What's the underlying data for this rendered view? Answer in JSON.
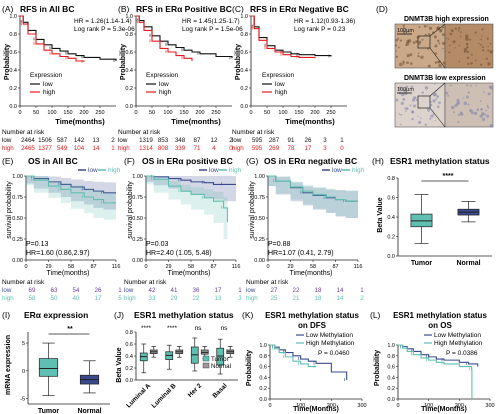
{
  "colors": {
    "red": "#e41a1c",
    "black": "#111111",
    "teal": "#5fbfb0",
    "navy": "#3b4a8c",
    "purple": "#6a3d9a",
    "gray": "#666666"
  },
  "panels": {
    "A": {
      "letter": "(A)",
      "title": "RFS in All BC",
      "hr": "HR = 1.26(1.14-1.4)",
      "logrank": "Log rank P = 5.3e-06",
      "ylabel": "Probability",
      "xlabel": "Time(months)",
      "legend_title": "Expression",
      "legend_low": "low",
      "legend_high": "high",
      "risk_header": "Number at risk",
      "risk_low_label": "low",
      "risk_low": [
        "2464",
        "1506",
        "587",
        "142",
        "13",
        "2"
      ],
      "risk_high_label": "high",
      "risk_high": [
        "2465",
        "1377",
        "549",
        "104",
        "14",
        "1"
      ]
    },
    "B": {
      "letter": "(B)",
      "title": "RFS in ERα Positive BC",
      "hr": "HR = 1.45(1.25-1.7)",
      "logrank": "Log rank P = 1.5e-06",
      "ylabel": "Probability",
      "xlabel": "Time(months)",
      "legend_title": "Expression",
      "legend_low": "low",
      "legend_high": "high",
      "risk_header": "Number at risk",
      "risk_low_label": "low",
      "risk_low": [
        "1319",
        "853",
        "348",
        "87",
        "12",
        "2"
      ],
      "risk_high_label": "high",
      "risk_high": [
        "1314",
        "808",
        "339",
        "71",
        "4",
        "0"
      ]
    },
    "C": {
      "letter": "(C)",
      "title": "RFS in ERα Negative BC",
      "hr": "HR = 1.12(0.93-1.36)",
      "logrank": "Log rank P = 0.23",
      "ylabel": "Probability",
      "xlabel": "Time(months)",
      "legend_title": "Expression",
      "legend_low": "low",
      "legend_high": "high",
      "risk_header": "Number at risk",
      "risk_low_label": "low",
      "risk_low": [
        "595",
        "287",
        "91",
        "26",
        "3",
        "1"
      ],
      "risk_high_label": "high",
      "risk_high": [
        "595",
        "269",
        "78",
        "17",
        "3",
        "0"
      ]
    },
    "D": {
      "letter": "(D)",
      "title_high": "DNMT3B high expression",
      "title_low": "DNMT3B low expression",
      "scale": "100μm"
    },
    "E": {
      "letter": "(E)",
      "title": "OS in All BC",
      "p": "P=0.13",
      "hr": "HR=1.60 (0.86,2.97)",
      "ylabel": "survival probability",
      "xlabel": "Time(months)",
      "legend_low": "low",
      "legend_high": "high",
      "risk_header": "Number at risk",
      "risk_low_label": "low",
      "risk_low": [
        "69",
        "63",
        "54",
        "26",
        "1"
      ],
      "risk_high_label": "high",
      "risk_high": [
        "58",
        "50",
        "40",
        "17",
        "5"
      ]
    },
    "F": {
      "letter": "(F)",
      "title": "OS in ERα positive BC",
      "p": "P=0.03",
      "hr": "HR=2.40 (1.05, 5.48)",
      "ylabel": "survival probability",
      "xlabel": "Time(months)",
      "legend_low": "low",
      "legend_high": "high",
      "risk_header": "Number at risk",
      "risk_low_label": "low",
      "risk_low": [
        "42",
        "41",
        "36",
        "17",
        "1"
      ],
      "risk_high_label": "high",
      "risk_high": [
        "33",
        "29",
        "22",
        "13",
        "3"
      ]
    },
    "G": {
      "letter": "(G)",
      "title": "OS in ERα negative BC",
      "p": "P=0.88",
      "hr": "HR=1.07 (0.41, 2.79)",
      "ylabel": "survival probability",
      "xlabel": "Time(months)",
      "legend_low": "low",
      "legend_high": "high",
      "risk_header": "Number at risk",
      "risk_low_label": "low",
      "risk_low": [
        "27",
        "22",
        "18",
        "14",
        "1"
      ],
      "risk_high_label": "high",
      "risk_high": [
        "25",
        "21",
        "18",
        "14",
        "2"
      ]
    },
    "H": {
      "letter": "(H)",
      "title": "ESR1 methylation status",
      "ylabel": "Beta Value",
      "sig": "****"
    },
    "I": {
      "letter": "(I)",
      "title": "ERα expression",
      "ylabel": "mRNA expression",
      "sig": "**"
    },
    "J": {
      "letter": "(J)",
      "title": "ESR1 methylation status",
      "ylabel": "Beta Value",
      "legend_tumor": "Tumor",
      "legend_normal": "Normal",
      "sig": [
        "****",
        "****",
        "ns",
        "ns"
      ]
    },
    "K": {
      "letter": "(K)",
      "title1": "ESR1 methylation status",
      "title2": "on DFS",
      "ylabel": "Probability",
      "xlabel": "Time(Months)",
      "legend_low": "Low  Methylation",
      "legend_high": "High Methylation",
      "p": "P = 0.0460"
    },
    "L": {
      "letter": "(L)",
      "title1": "ESR1 methylation status",
      "title2": "on OS",
      "ylabel": "Probability",
      "xlabel": "Time(Months)",
      "legend_low": "Low  Methylation",
      "legend_high": "High Methylation",
      "p": "P = 0.0386"
    }
  },
  "chart_data": [
    {
      "panel": "A",
      "type": "line",
      "x_ticks": [
        "0",
        "50",
        "100",
        "150",
        "200",
        "250"
      ],
      "y_ticks": [
        "0.0",
        "0.2",
        "0.4",
        "0.6",
        "0.8",
        "1.0"
      ],
      "xlim": [
        0,
        300
      ],
      "ylim": [
        0,
        1
      ],
      "series": [
        {
          "name": "low",
          "color": "#111111",
          "x": [
            0,
            10,
            25,
            50,
            75,
            100,
            125,
            150,
            175,
            200,
            250,
            300
          ],
          "y": [
            1,
            0.93,
            0.84,
            0.74,
            0.68,
            0.64,
            0.61,
            0.58,
            0.56,
            0.54,
            0.52,
            0.5
          ]
        },
        {
          "name": "high",
          "color": "#e41a1c",
          "x": [
            0,
            10,
            25,
            50,
            75,
            100,
            125,
            150,
            175,
            200
          ],
          "y": [
            1,
            0.91,
            0.8,
            0.69,
            0.62,
            0.58,
            0.55,
            0.53,
            0.5,
            0.49
          ]
        }
      ]
    },
    {
      "panel": "B",
      "type": "line",
      "x_ticks": [
        "0",
        "50",
        "100",
        "150",
        "200",
        "250"
      ],
      "y_ticks": [
        "0.0",
        "0.2",
        "0.4",
        "0.6",
        "0.8",
        "1.0"
      ],
      "xlim": [
        0,
        300
      ],
      "ylim": [
        0,
        1
      ],
      "series": [
        {
          "name": "low",
          "color": "#111111",
          "x": [
            0,
            10,
            25,
            50,
            75,
            100,
            125,
            150,
            175,
            200,
            250,
            300
          ],
          "y": [
            1,
            0.95,
            0.88,
            0.78,
            0.72,
            0.68,
            0.65,
            0.62,
            0.6,
            0.58,
            0.55,
            0.53
          ]
        },
        {
          "name": "high",
          "color": "#e41a1c",
          "x": [
            0,
            10,
            25,
            50,
            75,
            100,
            125,
            150,
            175
          ],
          "y": [
            1,
            0.93,
            0.84,
            0.72,
            0.64,
            0.6,
            0.56,
            0.53,
            0.5
          ]
        }
      ]
    },
    {
      "panel": "C",
      "type": "line",
      "x_ticks": [
        "0",
        "50",
        "100",
        "150",
        "200",
        "250"
      ],
      "y_ticks": [
        "0.0",
        "0.2",
        "0.4",
        "0.6",
        "0.8",
        "1.0"
      ],
      "xlim": [
        0,
        300
      ],
      "ylim": [
        0,
        1
      ],
      "series": [
        {
          "name": "low",
          "color": "#111111",
          "x": [
            0,
            10,
            25,
            50,
            75,
            100,
            125,
            150,
            200,
            250
          ],
          "y": [
            1,
            0.88,
            0.76,
            0.67,
            0.62,
            0.6,
            0.58,
            0.57,
            0.56,
            0.55
          ]
        },
        {
          "name": "high",
          "color": "#e41a1c",
          "x": [
            0,
            10,
            25,
            50,
            75,
            100,
            125,
            150,
            200
          ],
          "y": [
            1,
            0.86,
            0.73,
            0.64,
            0.6,
            0.57,
            0.55,
            0.54,
            0.53
          ]
        }
      ]
    },
    {
      "panel": "E",
      "type": "line",
      "x_ticks": [
        "0",
        "29",
        "58",
        "87",
        "116"
      ],
      "y_ticks": [
        "0.00",
        "0.25",
        "0.50",
        "0.75",
        "1.00"
      ],
      "xlim": [
        0,
        116
      ],
      "ylim": [
        0,
        1
      ],
      "series": [
        {
          "name": "low",
          "color": "#3b4a8c",
          "x": [
            0,
            10,
            29,
            45,
            58,
            75,
            87,
            100,
            116
          ],
          "y": [
            1,
            0.97,
            0.93,
            0.9,
            0.87,
            0.84,
            0.82,
            0.8,
            0.8
          ]
        },
        {
          "name": "high",
          "color": "#5fbfb0",
          "x": [
            0,
            10,
            29,
            45,
            58,
            75,
            87,
            100,
            116
          ],
          "y": [
            1,
            0.95,
            0.88,
            0.84,
            0.8,
            0.75,
            0.72,
            0.68,
            0.68
          ]
        }
      ]
    },
    {
      "panel": "F",
      "type": "line",
      "x_ticks": [
        "0",
        "29",
        "58",
        "87",
        "116"
      ],
      "y_ticks": [
        "0.00",
        "0.25",
        "0.50",
        "0.75",
        "1.00"
      ],
      "xlim": [
        0,
        116
      ],
      "ylim": [
        0,
        1
      ],
      "series": [
        {
          "name": "low",
          "color": "#3b4a8c",
          "x": [
            0,
            10,
            29,
            45,
            58,
            75,
            87,
            100,
            116
          ],
          "y": [
            1,
            0.99,
            0.97,
            0.95,
            0.93,
            0.92,
            0.9,
            0.9,
            0.9
          ]
        },
        {
          "name": "high",
          "color": "#5fbfb0",
          "x": [
            0,
            10,
            29,
            45,
            58,
            75,
            87,
            100,
            105
          ],
          "y": [
            1,
            0.96,
            0.88,
            0.82,
            0.78,
            0.74,
            0.7,
            0.62,
            0.45
          ]
        }
      ]
    },
    {
      "panel": "G",
      "type": "line",
      "x_ticks": [
        "0",
        "29",
        "58",
        "87",
        "116"
      ],
      "y_ticks": [
        "0.00",
        "0.25",
        "0.50",
        "0.75",
        "1.00"
      ],
      "xlim": [
        0,
        116
      ],
      "ylim": [
        0,
        1
      ],
      "series": [
        {
          "name": "low",
          "color": "#3b4a8c",
          "x": [
            0,
            10,
            29,
            45,
            58,
            75,
            87,
            100,
            116
          ],
          "y": [
            1,
            0.94,
            0.86,
            0.8,
            0.77,
            0.74,
            0.72,
            0.7,
            0.7
          ]
        },
        {
          "name": "high",
          "color": "#5fbfb0",
          "x": [
            0,
            10,
            29,
            45,
            58,
            75,
            87,
            100,
            116
          ],
          "y": [
            1,
            0.94,
            0.87,
            0.82,
            0.78,
            0.75,
            0.72,
            0.7,
            0.7
          ]
        }
      ]
    },
    {
      "panel": "H",
      "type": "box",
      "categories": [
        "Tumor",
        "Normal"
      ],
      "y_ticks": [
        "0.0",
        "0.2",
        "0.4",
        "0.6",
        "0.8"
      ],
      "ylim": [
        0,
        0.8
      ],
      "boxes": [
        {
          "name": "Tumor",
          "min": 0.13,
          "q1": 0.3,
          "median": 0.36,
          "q3": 0.43,
          "max": 0.63,
          "color": "#5fbfb0"
        },
        {
          "name": "Normal",
          "min": 0.35,
          "q1": 0.42,
          "median": 0.45,
          "q3": 0.48,
          "max": 0.56,
          "color": "#3b4a8c"
        }
      ]
    },
    {
      "panel": "I",
      "type": "box",
      "categories": [
        "Tumor",
        "Normal"
      ],
      "y_ticks": [
        "-5",
        "0",
        "5"
      ],
      "ylim": [
        -6,
        7
      ],
      "boxes": [
        {
          "name": "Tumor",
          "min": -4.5,
          "q1": -1.0,
          "median": 0.4,
          "q3": 2.2,
          "max": 5.0,
          "color": "#5fbfb0"
        },
        {
          "name": "Normal",
          "min": -4.0,
          "q1": -2.4,
          "median": -1.6,
          "q3": -0.8,
          "max": 1.8,
          "color": "#3b4a8c"
        }
      ]
    },
    {
      "panel": "J",
      "type": "box",
      "categories": [
        "Luminal A",
        "Luminal B",
        "Her 2",
        "Basal"
      ],
      "y_ticks": [
        "0.0",
        "0.2",
        "0.4",
        "0.6",
        "0.8"
      ],
      "ylim": [
        0,
        0.8
      ],
      "series": [
        {
          "name": "Tumor",
          "color": "#5fbfb0",
          "boxes": [
            {
              "min": 0.12,
              "q1": 0.32,
              "median": 0.39,
              "q3": 0.45,
              "max": 0.6
            },
            {
              "min": 0.18,
              "q1": 0.34,
              "median": 0.41,
              "q3": 0.47,
              "max": 0.58
            },
            {
              "min": 0.15,
              "q1": 0.28,
              "median": 0.42,
              "q3": 0.55,
              "max": 0.7
            },
            {
              "min": 0.1,
              "q1": 0.25,
              "median": 0.4,
              "q3": 0.53,
              "max": 0.68
            }
          ]
        },
        {
          "name": "Normal",
          "color": "#999999",
          "boxes": [
            {
              "min": 0.38,
              "q1": 0.44,
              "median": 0.47,
              "q3": 0.5,
              "max": 0.56
            },
            {
              "min": 0.38,
              "q1": 0.44,
              "median": 0.47,
              "q3": 0.5,
              "max": 0.56
            },
            {
              "min": 0.36,
              "q1": 0.43,
              "median": 0.46,
              "q3": 0.5,
              "max": 0.56
            },
            {
              "min": 0.38,
              "q1": 0.44,
              "median": 0.47,
              "q3": 0.5,
              "max": 0.56
            }
          ]
        }
      ]
    },
    {
      "panel": "K",
      "type": "line",
      "x_ticks": [
        "0",
        "100",
        "200",
        "300"
      ],
      "y_ticks": [
        "0.0",
        "0.2",
        "0.4",
        "0.6",
        "0.8",
        "1.0"
      ],
      "xlim": [
        0,
        300
      ],
      "ylim": [
        0,
        1
      ],
      "series": [
        {
          "name": "Low  Methylation",
          "color": "#3b4a8c",
          "x": [
            0,
            15,
            30,
            50,
            75,
            100,
            125,
            150,
            200,
            250
          ],
          "y": [
            1,
            0.96,
            0.91,
            0.86,
            0.8,
            0.74,
            0.7,
            0.66,
            0.5,
            0.35
          ]
        },
        {
          "name": "High Methylation",
          "color": "#5fbfb0",
          "x": [
            0,
            15,
            30,
            50,
            75,
            100,
            125,
            150
          ],
          "y": [
            1,
            0.93,
            0.86,
            0.78,
            0.7,
            0.65,
            0.6,
            0.6
          ]
        }
      ]
    },
    {
      "panel": "L",
      "type": "line",
      "x_ticks": [
        "0",
        "100",
        "200",
        "300"
      ],
      "y_ticks": [
        "0.0",
        "0.2",
        "0.4",
        "0.6",
        "0.8",
        "1.0"
      ],
      "xlim": [
        0,
        300
      ],
      "ylim": [
        0,
        1
      ],
      "series": [
        {
          "name": "Low  Methylation",
          "color": "#3b4a8c",
          "x": [
            0,
            15,
            30,
            50,
            75,
            100,
            125,
            150,
            200,
            230,
            260
          ],
          "y": [
            1,
            0.97,
            0.93,
            0.88,
            0.82,
            0.78,
            0.74,
            0.72,
            0.68,
            0.65,
            0.6
          ]
        },
        {
          "name": "High Methylation",
          "color": "#5fbfb0",
          "x": [
            0,
            15,
            30,
            50,
            75,
            100,
            125,
            150,
            200,
            240,
            241
          ],
          "y": [
            1,
            0.94,
            0.88,
            0.82,
            0.76,
            0.72,
            0.68,
            0.65,
            0.6,
            0.55,
            0.0
          ]
        }
      ]
    }
  ]
}
